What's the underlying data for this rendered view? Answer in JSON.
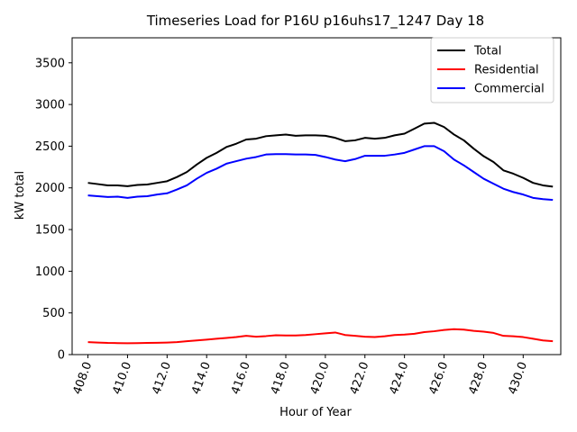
{
  "chart_data": {
    "type": "line",
    "title": "Timeseries Load for P16U p16uhs17_1247  Day 18",
    "xlabel": "Hour of Year",
    "ylabel": "kW total",
    "xlim": [
      407.2,
      431.9
    ],
    "ylim": [
      0,
      3800
    ],
    "x_ticks": [
      408,
      410,
      412,
      414,
      416,
      418,
      420,
      422,
      424,
      426,
      428,
      430
    ],
    "x_tick_labels": [
      "408.0",
      "410.0",
      "412.0",
      "414.0",
      "416.0",
      "418.0",
      "420.0",
      "422.0",
      "424.0",
      "426.0",
      "428.0",
      "430.0"
    ],
    "y_ticks": [
      0,
      500,
      1000,
      1500,
      2000,
      2500,
      3000,
      3500
    ],
    "y_tick_labels": [
      "0",
      "500",
      "1000",
      "1500",
      "2000",
      "2500",
      "3000",
      "3500"
    ],
    "legend": {
      "placement": "top-right",
      "entries": [
        "Total",
        "Residential",
        "Commercial"
      ]
    },
    "x": [
      408.0,
      408.5,
      409.0,
      409.5,
      410.0,
      410.5,
      411.0,
      411.5,
      412.0,
      412.5,
      413.0,
      413.5,
      414.0,
      414.5,
      415.0,
      415.5,
      416.0,
      416.5,
      417.0,
      417.5,
      418.0,
      418.5,
      419.0,
      419.5,
      420.0,
      420.5,
      421.0,
      421.5,
      422.0,
      422.5,
      423.0,
      423.5,
      424.0,
      424.5,
      425.0,
      425.5,
      426.0,
      426.5,
      427.0,
      427.5,
      428.0,
      428.5,
      429.0,
      429.5,
      430.0,
      430.5,
      431.0,
      431.5
    ],
    "series": [
      {
        "name": "Total",
        "color": "#000000",
        "values": [
          2060,
          2045,
          2030,
          2030,
          2020,
          2035,
          2040,
          2060,
          2080,
          2130,
          2190,
          2280,
          2360,
          2420,
          2490,
          2530,
          2580,
          2590,
          2620,
          2630,
          2640,
          2625,
          2630,
          2630,
          2625,
          2600,
          2560,
          2570,
          2600,
          2590,
          2600,
          2630,
          2650,
          2710,
          2770,
          2780,
          2730,
          2640,
          2570,
          2470,
          2380,
          2310,
          2210,
          2170,
          2120,
          2060,
          2030,
          2015
        ]
      },
      {
        "name": "Residential",
        "color": "#ff0000",
        "values": [
          150,
          145,
          140,
          138,
          136,
          138,
          140,
          142,
          145,
          150,
          160,
          170,
          180,
          190,
          200,
          210,
          225,
          215,
          222,
          232,
          230,
          230,
          235,
          245,
          255,
          265,
          235,
          225,
          215,
          210,
          220,
          235,
          240,
          250,
          270,
          280,
          295,
          305,
          300,
          285,
          275,
          260,
          225,
          220,
          210,
          190,
          170,
          160
        ]
      },
      {
        "name": "Commercial",
        "color": "#0000ff",
        "values": [
          1910,
          1900,
          1890,
          1895,
          1880,
          1895,
          1900,
          1920,
          1935,
          1980,
          2030,
          2110,
          2180,
          2230,
          2290,
          2320,
          2350,
          2370,
          2400,
          2405,
          2405,
          2400,
          2400,
          2395,
          2370,
          2340,
          2320,
          2345,
          2385,
          2385,
          2385,
          2400,
          2420,
          2460,
          2500,
          2500,
          2440,
          2340,
          2270,
          2190,
          2110,
          2050,
          1990,
          1950,
          1920,
          1880,
          1865,
          1855
        ]
      }
    ]
  }
}
